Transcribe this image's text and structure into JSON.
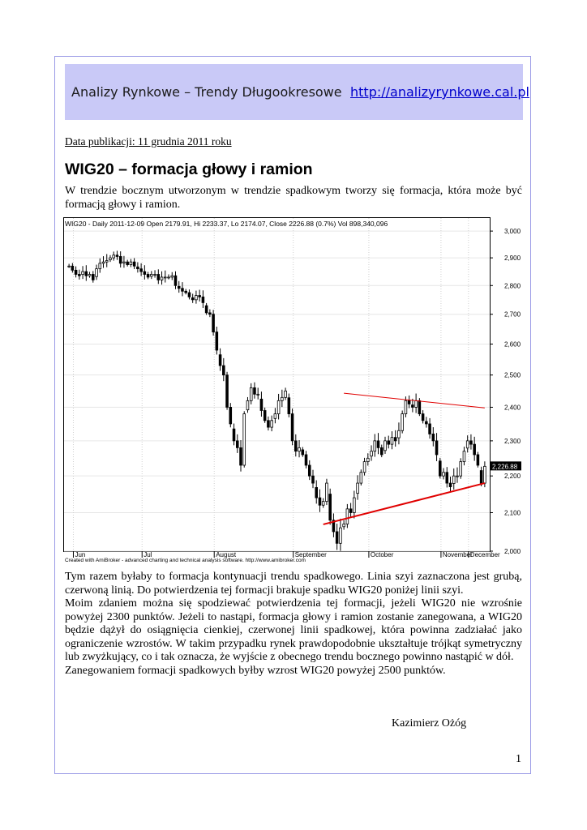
{
  "header": {
    "title": "Analizy Rynkowe – Trendy Długookresowe",
    "url": "http://analizyrynkowe.cal.pl"
  },
  "document": {
    "publication_date": "Data publikacji: 11 grudnia 2011 roku",
    "title": "WIG20 – formacja głowy i ramion",
    "intro": "W trendzie bocznym utworzonym w trendzie spadkowym tworzy się formacja, która może być formacją głowy i ramion.",
    "paragraphs": [
      "Tym razem byłaby to formacja kontynuacji trendu spadkowego. Linia szyi zaznaczona jest grubą, czerwoną linią. Do potwierdzenia tej formacji brakuje spadku WIG20 poniżej linii szyi.",
      "Moim zdaniem można się spodziewać potwierdzenia tej formacji, jeżeli WIG20 nie wzrośnie powyżej 2300 punktów. Jeżeli to nastąpi, formacja głowy i ramion zostanie zanegowana, a WIG20 będzie dążył do osiągnięcia cienkiej, czerwonej linii spadkowej, która powinna zadziałać jako ograniczenie wzrostów. W takim przypadku rynek prawdopodobnie ukształtuje trójkąt symetryczny lub zwyżkujący, co i tak oznacza, że wyjście z obecnego trendu bocznego powinno nastąpić w dół.",
      "Zanegowaniem formacji spadkowych byłby wzrost WIG20 powyżej 2500 punktów."
    ],
    "author": "Kazimierz Ożóg",
    "page_number": "1"
  },
  "chart_data": {
    "type": "candlestick",
    "title": "WIG20 - Daily 2011-12-09 Open 2179.91, Hi 2233.37, Lo 2174.07, Close 2226.88 (0.7%) Vol 898,340,096",
    "footer": "Created with AmiBroker - advanced charting and technical analysis software. http://www.amibroker.com",
    "ylim": [
      2000,
      3050
    ],
    "y_scale": "log",
    "y_ticks": [
      2000,
      2100,
      2200,
      2300,
      2400,
      2500,
      2600,
      2700,
      2800,
      2900,
      3000
    ],
    "y_tick_labels": [
      "2,000",
      "2,100",
      "2,200",
      "2,300",
      "2,400",
      "2,500",
      "2,600",
      "2,700",
      "2,800",
      "2,900",
      "3,000"
    ],
    "month_labels": [
      "Jun",
      "Jul",
      "August",
      "September",
      "October",
      "November",
      "December"
    ],
    "last_price_label": "2,226.88",
    "last_price": 2226.88,
    "grid": true,
    "colors": {
      "up": "#ffffff",
      "down": "#000000",
      "trendline": "#e00000",
      "last_price_bg": "#000000"
    },
    "closes": [
      2870,
      2855,
      2840,
      2835,
      2850,
      2835,
      2840,
      2820,
      2860,
      2880,
      2885,
      2890,
      2900,
      2910,
      2905,
      2880,
      2885,
      2875,
      2885,
      2870,
      2860,
      2850,
      2840,
      2830,
      2840,
      2840,
      2820,
      2830,
      2830,
      2830,
      2835,
      2800,
      2790,
      2780,
      2775,
      2760,
      2750,
      2765,
      2760,
      2740,
      2705,
      2700,
      2640,
      2580,
      2530,
      2500,
      2400,
      2350,
      2300,
      2280,
      2230,
      2380,
      2420,
      2460,
      2440,
      2440,
      2390,
      2360,
      2340,
      2360,
      2380,
      2420,
      2430,
      2450,
      2380,
      2300,
      2270,
      2280,
      2260,
      2230,
      2200,
      2180,
      2140,
      2120,
      2130,
      2180,
      2080,
      2050,
      2020,
      2060,
      2070,
      2110,
      2100,
      2140,
      2180,
      2210,
      2240,
      2250,
      2270,
      2300,
      2280,
      2260,
      2300,
      2290,
      2310,
      2300,
      2330,
      2380,
      2420,
      2410,
      2400,
      2420,
      2380,
      2360,
      2350,
      2320,
      2300,
      2260,
      2200,
      2210,
      2180,
      2170,
      2200,
      2200,
      2240,
      2270,
      2300,
      2290,
      2260,
      2230,
      2180,
      2226.88
    ],
    "lines": [
      {
        "name": "thin",
        "from": {
          "bar": 80,
          "value": 2443
        },
        "to": {
          "bar": 121,
          "value": 2398
        },
        "width": 1
      },
      {
        "name": "neckline",
        "from": {
          "bar": 74,
          "value": 2069
        },
        "to": {
          "bar": 121,
          "value": 2180
        },
        "width": 2
      }
    ]
  }
}
